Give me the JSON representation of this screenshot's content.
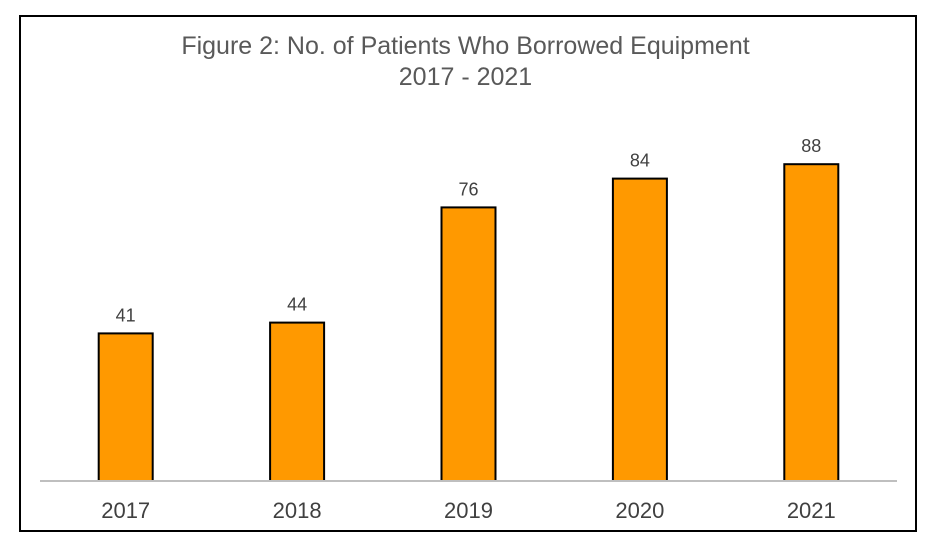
{
  "chart_data": {
    "type": "bar",
    "title": "Figure 2: No. of Patients Who Borrowed Equipment",
    "subtitle": "2017 - 2021",
    "categories": [
      "2017",
      "2018",
      "2019",
      "2020",
      "2021"
    ],
    "values": [
      41,
      44,
      76,
      84,
      88
    ],
    "data_labels": [
      "41",
      "44",
      "76",
      "84",
      "88"
    ],
    "xlabel": "",
    "ylabel": "",
    "ylim": [
      0,
      100
    ],
    "grid": false,
    "legend": "none",
    "bar_color": "#FF9900",
    "bar_edge_color": "#000000",
    "axis_color": "#BFBFBF"
  }
}
